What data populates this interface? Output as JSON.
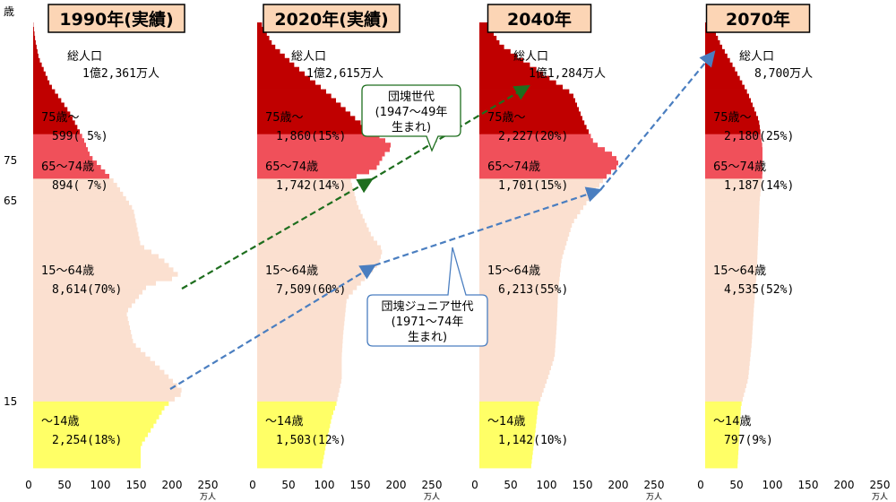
{
  "chart_data": {
    "type": "bar",
    "colors": {
      "age75plus": "#c00000",
      "age65to74": "#f0505a",
      "age15to64": "#fbe0d0",
      "age0to14": "#ffff66",
      "title_fill": "#fcd5b5",
      "generation_arrow": "#1e6e1e",
      "junior_arrow": "#4a7ec0"
    },
    "yaxis": {
      "unit": "歳",
      "ticks": [
        "75",
        "65",
        "15"
      ]
    },
    "xaxis": {
      "ticks": [
        "0",
        "50",
        "100",
        "150",
        "200",
        "250"
      ],
      "unit": "万人",
      "range": [
        0,
        250
      ]
    },
    "panels": [
      {
        "title": "1990年(実績)",
        "total_label": "総人口",
        "total_value": "1億2,361万人",
        "groups": [
          {
            "name": "75歳～",
            "value": "599( 5%)",
            "count": 599,
            "share": 5
          },
          {
            "name": "65～74歳",
            "value": "894( 7%)",
            "count": 894,
            "share": 7
          },
          {
            "name": "15～64歳",
            "value": "8,614(70%)",
            "count": 8614,
            "share": 70
          },
          {
            "name": "～14歳",
            "value": "2,254(18%)",
            "count": 2254,
            "share": 18
          }
        ]
      },
      {
        "title": "2020年(実績)",
        "total_label": "総人口",
        "total_value": "1億2,615万人",
        "groups": [
          {
            "name": "75歳～",
            "value": "1,860(15%)",
            "count": 1860,
            "share": 15
          },
          {
            "name": "65～74歳",
            "value": "1,742(14%)",
            "count": 1742,
            "share": 14
          },
          {
            "name": "15～64歳",
            "value": "7,509(60%)",
            "count": 7509,
            "share": 60
          },
          {
            "name": "～14歳",
            "value": "1,503(12%)",
            "count": 1503,
            "share": 12
          }
        ]
      },
      {
        "title": "2040年",
        "total_label": "総人口",
        "total_value": "1億1,284万人",
        "groups": [
          {
            "name": "75歳～",
            "value": "2,227(20%)",
            "count": 2227,
            "share": 20
          },
          {
            "name": "65～74歳",
            "value": "1,701(15%)",
            "count": 1701,
            "share": 15
          },
          {
            "name": "15～64歳",
            "value": "6,213(55%)",
            "count": 6213,
            "share": 55
          },
          {
            "name": "～14歳",
            "value": "1,142(10%)",
            "count": 1142,
            "share": 10
          }
        ]
      },
      {
        "title": "2070年",
        "total_label": "総人口",
        "total_value": "8,700万人",
        "groups": [
          {
            "name": "75歳～",
            "value": "2,180(25%)",
            "count": 2180,
            "share": 25
          },
          {
            "name": "65～74歳",
            "value": "1,187(14%)",
            "count": 1187,
            "share": 14
          },
          {
            "name": "15～64歳",
            "value": "4,535(52%)",
            "count": 4535,
            "share": 52
          },
          {
            "name": "～14歳",
            "value": "797(9%)",
            "count": 797,
            "share": 9
          }
        ]
      }
    ],
    "annotations": [
      {
        "name": "dankai",
        "lines": [
          "団塊世代",
          "(1947～49年",
          "生まれ)"
        ]
      },
      {
        "name": "dankai-junior",
        "lines": [
          "団塊ジュニア世代",
          "(1971～74年",
          "生まれ)"
        ]
      }
    ]
  }
}
